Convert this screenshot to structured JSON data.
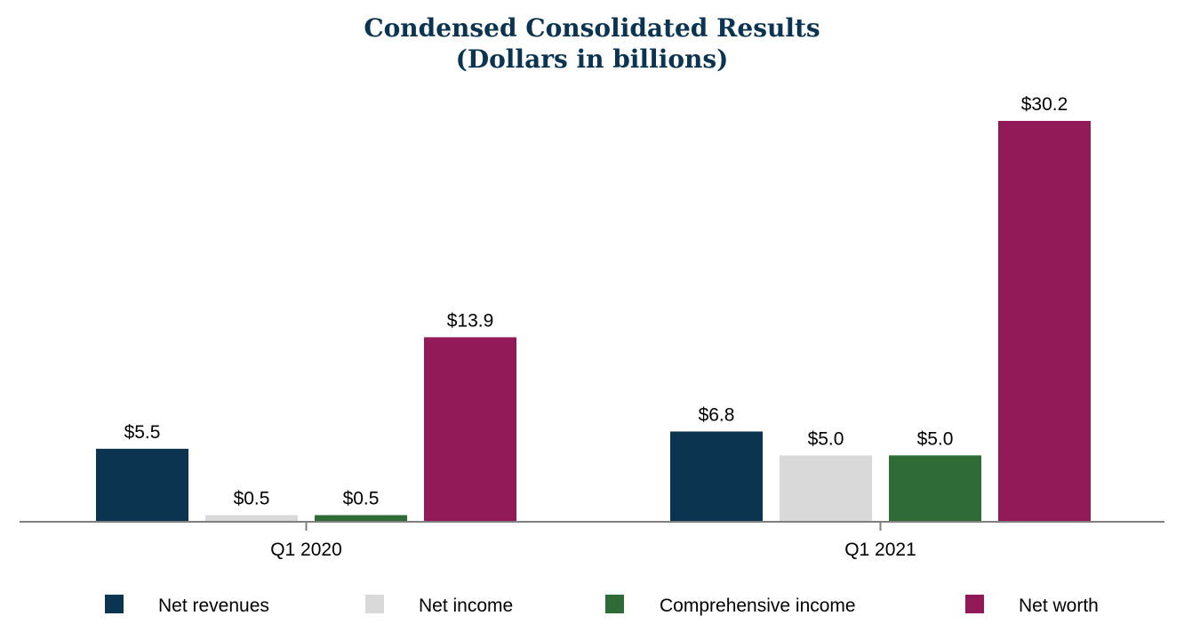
{
  "chart_data": {
    "type": "bar",
    "title": "Condensed Consolidated Results",
    "subtitle": "(Dollars in billions)",
    "categories": [
      "Q1 2020",
      "Q1 2021"
    ],
    "series": [
      {
        "name": "Net revenues",
        "color": "#0b3450",
        "values": [
          5.5,
          6.8
        ],
        "labels": [
          "$5.5",
          "$6.8"
        ]
      },
      {
        "name": "Net income",
        "color": "#d9d9d9",
        "values": [
          0.5,
          5.0
        ],
        "labels": [
          "$0.5",
          "$5.0"
        ]
      },
      {
        "name": "Comprehensive income",
        "color": "#2e6b36",
        "values": [
          0.5,
          5.0
        ],
        "labels": [
          "$0.5",
          "$5.0"
        ]
      },
      {
        "name": "Net worth",
        "color": "#921a58",
        "values": [
          13.9,
          30.2
        ],
        "labels": [
          "$13.9",
          "$30.2"
        ]
      }
    ],
    "ylim": [
      0,
      30.2
    ],
    "grid": false,
    "legend_position": "bottom"
  }
}
